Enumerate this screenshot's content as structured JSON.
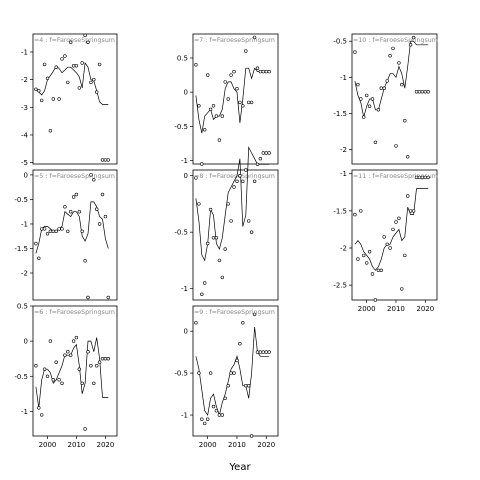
{
  "chart_data": {
    "type": "scatter",
    "xlabel": "Year",
    "ylabel": "",
    "facet_layout": "3 columns, column-major, free y scales",
    "x_ticks": [
      2000,
      2010,
      2020
    ],
    "xlim": [
      1995,
      2024
    ],
    "panels": [
      {
        "label": "=4 : f=FaroeseSpringsum",
        "ylim": [
          -5.05,
          -0.35
        ],
        "y_ticks": [
          -1,
          -2,
          -3,
          -4,
          -5
        ],
        "x": [
          1996,
          1997,
          1998,
          1999,
          2000,
          2001,
          2002,
          2003,
          2004,
          2005,
          2006,
          2007,
          2008,
          2009,
          2010,
          2011,
          2012,
          2013,
          2014,
          2015,
          2016,
          2017,
          2018,
          2019,
          2020,
          2021
        ],
        "points": [
          -2.35,
          -2.4,
          -2.75,
          -1.45,
          -1.95,
          -3.85,
          -2.7,
          -1.55,
          -2.7,
          -1.25,
          -1.15,
          -2.1,
          -0.65,
          -1.5,
          -1.5,
          -2.3,
          -1.4,
          -0.4,
          -0.65,
          -2.1,
          -2.0,
          -2.45,
          -1.45,
          -4.9,
          -4.9,
          -4.9
        ],
        "trend": [
          -2.3,
          -2.45,
          -2.55,
          -2.4,
          -2.0,
          -1.85,
          -1.7,
          -1.5,
          -1.6,
          -1.75,
          -1.65,
          -1.55,
          -1.55,
          -1.65,
          -1.75,
          -1.9,
          -2.3,
          -1.4,
          -1.55,
          -2.0,
          -2.05,
          -2.4,
          -2.8,
          -2.9,
          -2.9,
          -2.9
        ]
      },
      {
        "label": "=5 : f=FaroeseSpringsum",
        "ylim": [
          -2.55,
          0.1
        ],
        "y_ticks": [
          0.0,
          -0.5,
          -1.0,
          -1.5,
          -2.0
        ],
        "x": [
          1996,
          1997,
          1998,
          1999,
          2000,
          2001,
          2002,
          2003,
          2004,
          2005,
          2006,
          2007,
          2008,
          2009,
          2010,
          2011,
          2012,
          2013,
          2014,
          2015,
          2016,
          2017,
          2018,
          2019,
          2020,
          2021
        ],
        "points": [
          -1.4,
          -1.7,
          -1.1,
          -1.1,
          -1.2,
          -1.15,
          -1.15,
          -1.15,
          -1.1,
          -1.1,
          -0.65,
          -1.15,
          -0.75,
          -0.45,
          -0.4,
          -0.75,
          -1.15,
          -1.75,
          -2.5,
          0.0,
          -0.1,
          -0.7,
          -1.0,
          -0.4,
          -0.85,
          -2.5
        ],
        "trend": [
          -1.6,
          -1.4,
          -1.1,
          -1.05,
          -1.05,
          -1.1,
          -1.15,
          -1.15,
          -1.1,
          -1.05,
          -0.75,
          -0.8,
          -0.85,
          -0.75,
          -0.75,
          -0.85,
          -1.25,
          -1.35,
          -1.2,
          -0.55,
          -0.55,
          -0.65,
          -0.85,
          -0.9,
          -1.3,
          -1.5
        ]
      },
      {
        "label": "=6 : f=FaroeseSpringsum",
        "ylim": [
          -1.35,
          0.5
        ],
        "y_ticks": [
          0.5,
          0.0,
          -0.5,
          -1.0
        ],
        "x": [
          1996,
          1997,
          1998,
          1999,
          2000,
          2001,
          2002,
          2003,
          2004,
          2005,
          2006,
          2007,
          2008,
          2009,
          2010,
          2011,
          2012,
          2013,
          2014,
          2015,
          2016,
          2017,
          2018,
          2019,
          2020,
          2021
        ],
        "points": [
          -0.35,
          -0.95,
          -1.05,
          -0.4,
          -0.5,
          0.0,
          -0.55,
          -0.3,
          -0.55,
          -0.6,
          -0.2,
          -0.15,
          -0.2,
          0.0,
          0.05,
          -0.4,
          -0.6,
          -1.25,
          -0.15,
          -0.35,
          -0.6,
          -0.35,
          -0.3,
          -0.25,
          -0.25,
          -0.25
        ],
        "trend": [
          -0.65,
          -0.95,
          -0.55,
          -0.4,
          -0.4,
          -0.45,
          -0.6,
          -0.55,
          -0.45,
          -0.35,
          -0.2,
          -0.2,
          -0.2,
          -0.1,
          -0.05,
          -0.35,
          -0.75,
          -0.6,
          0.0,
          0.0,
          -0.15,
          0.05,
          -0.25,
          -0.8,
          -0.8,
          -0.8
        ]
      },
      {
        "label": "=7 : f=FaroeseSpringsum",
        "ylim": [
          -1.05,
          0.85
        ],
        "y_ticks": [
          0.5,
          0.0,
          -0.5,
          -1.0
        ],
        "x": [
          1996,
          1997,
          1998,
          1999,
          2000,
          2001,
          2002,
          2003,
          2004,
          2005,
          2006,
          2007,
          2008,
          2009,
          2010,
          2011,
          2012,
          2013,
          2014,
          2015,
          2016,
          2017,
          2018,
          2019,
          2020,
          2021
        ],
        "points": [
          0.4,
          -0.2,
          -1.05,
          -0.55,
          0.25,
          -0.25,
          -0.2,
          -0.35,
          -0.7,
          -0.35,
          0.15,
          -0.1,
          0.25,
          0.3,
          0.05,
          -0.15,
          -0.2,
          0.6,
          -0.15,
          -0.15,
          0.8,
          0.35,
          0.3,
          0.3,
          0.3,
          0.3
        ],
        "trend": [
          -0.05,
          -0.4,
          -0.6,
          -0.35,
          -0.3,
          -0.25,
          -0.4,
          -0.35,
          -0.35,
          -0.25,
          0.05,
          0.15,
          0.15,
          0.05,
          0.0,
          -0.45,
          -0.1,
          0.35,
          0.35,
          0.2,
          0.35,
          0.3,
          0.3,
          0.3,
          0.3,
          0.3
        ]
      },
      {
        "label": "=8 : f=FaroeseSpringsum",
        "ylim": [
          -1.1,
          0.05
        ],
        "y_ticks": [
          0.0,
          -0.5,
          -1.0
        ],
        "x": [
          1996,
          1997,
          1998,
          1999,
          2000,
          2001,
          2002,
          2003,
          2004,
          2005,
          2006,
          2007,
          2008,
          2009,
          2010,
          2011,
          2012,
          2013,
          2014,
          2015,
          2016,
          2017,
          2018,
          2019,
          2020,
          2021
        ],
        "points": [
          -0.02,
          -0.25,
          -1.05,
          -0.95,
          -0.6,
          -0.3,
          -0.55,
          -0.55,
          -0.75,
          -0.9,
          -0.65,
          -0.25,
          -0.4,
          -0.1,
          -0.05,
          0.0,
          -0.05,
          0.05,
          -0.4,
          -0.5,
          -0.05,
          0.1,
          0.15,
          0.2,
          0.2,
          0.2
        ],
        "trend": [
          -0.2,
          -0.4,
          -0.7,
          -0.75,
          -0.6,
          -0.3,
          -0.35,
          -0.6,
          -0.65,
          -0.55,
          -0.35,
          -0.15,
          -0.1,
          -0.05,
          0.0,
          0.15,
          -0.45,
          -0.35,
          0.25,
          0.2,
          0.15,
          0.1,
          0.1,
          0.1,
          0.1,
          0.1
        ]
      },
      {
        "label": "=9 : f=FaroeseSpringsum",
        "ylim": [
          -1.25,
          0.3
        ],
        "y_ticks": [
          0.0,
          -0.5,
          -1.0
        ],
        "x": [
          1996,
          1997,
          1998,
          1999,
          2000,
          2001,
          2002,
          2003,
          2004,
          2005,
          2006,
          2007,
          2008,
          2009,
          2010,
          2011,
          2012,
          2013,
          2014,
          2015,
          2016,
          2017,
          2018,
          2019,
          2020,
          2021
        ],
        "points": [
          0.1,
          -0.5,
          -1.05,
          -1.1,
          -1.05,
          -0.5,
          -0.9,
          -0.95,
          -1.0,
          -1.0,
          -0.8,
          -0.65,
          -0.5,
          -0.5,
          -0.35,
          -0.15,
          0.1,
          -0.65,
          -0.65,
          -1.25,
          0.2,
          -0.25,
          -0.25,
          -0.25,
          -0.25,
          -0.25
        ],
        "trend": [
          -0.3,
          -0.45,
          -0.7,
          -0.95,
          -1.0,
          -0.8,
          -0.75,
          -0.9,
          -1.0,
          -0.85,
          -0.75,
          -0.6,
          -0.45,
          -0.4,
          -0.3,
          -0.45,
          -0.65,
          -0.65,
          -0.8,
          -0.5,
          0.05,
          -0.25,
          -0.3,
          -0.3,
          -0.3,
          -0.3
        ]
      },
      {
        "label": "=10 : f=FaroeseSpringsum",
        "ylim": [
          -2.2,
          -0.4
        ],
        "y_ticks": [
          -0.5,
          -1.0,
          -1.5,
          -2.0
        ],
        "x": [
          1996,
          1997,
          1998,
          1999,
          2000,
          2001,
          2002,
          2003,
          2004,
          2005,
          2006,
          2007,
          2008,
          2009,
          2010,
          2011,
          2012,
          2013,
          2014,
          2015,
          2016,
          2017,
          2018,
          2019,
          2020,
          2021
        ],
        "points": [
          -0.65,
          -1.1,
          -1.3,
          -1.55,
          -1.25,
          -1.4,
          -1.3,
          -1.9,
          -1.45,
          -1.15,
          -1.15,
          -1.05,
          -0.7,
          -0.6,
          -1.95,
          -0.8,
          -1.1,
          -1.6,
          -2.1,
          -0.55,
          -0.45,
          -1.2,
          -1.2,
          -1.2,
          -1.2,
          -1.2
        ],
        "trend": [
          -1.05,
          -1.25,
          -1.35,
          -1.55,
          -1.4,
          -1.3,
          -1.3,
          -1.45,
          -1.45,
          -1.3,
          -1.15,
          -1.05,
          -0.95,
          -0.95,
          -1.0,
          -0.85,
          -0.95,
          -1.15,
          -0.85,
          -0.5,
          -0.5,
          -0.55,
          -0.55,
          -0.55,
          -0.55,
          -0.55
        ]
      },
      {
        "label": "=11 : f=FaroeseSpringsum",
        "ylim": [
          -2.7,
          -0.95
        ],
        "y_ticks": [
          -1.0,
          -1.5,
          -2.0,
          -2.5
        ],
        "x": [
          1996,
          1997,
          1998,
          1999,
          2000,
          2001,
          2002,
          2003,
          2004,
          2005,
          2006,
          2007,
          2008,
          2009,
          2010,
          2011,
          2012,
          2013,
          2014,
          2015,
          2016,
          2017,
          2018,
          2019,
          2020,
          2021
        ],
        "points": [
          -1.55,
          -2.15,
          -1.5,
          -2.1,
          -2.2,
          -2.05,
          -2.35,
          -2.7,
          -2.3,
          -2.3,
          -1.85,
          -1.95,
          -2.0,
          -1.75,
          -1.65,
          -1.6,
          -2.55,
          -2.1,
          -1.3,
          -1.5,
          -1.5,
          -1.05,
          -1.05,
          -1.05,
          -1.05,
          -1.05
        ],
        "trend": [
          -1.95,
          -1.9,
          -1.95,
          -2.05,
          -2.1,
          -2.15,
          -2.25,
          -2.3,
          -2.25,
          -2.15,
          -2.0,
          -1.95,
          -1.95,
          -1.85,
          -1.8,
          -1.75,
          -1.9,
          -1.85,
          -1.45,
          -1.55,
          -1.55,
          -1.2,
          -1.2,
          -1.2,
          -1.2,
          -1.2
        ]
      }
    ]
  }
}
